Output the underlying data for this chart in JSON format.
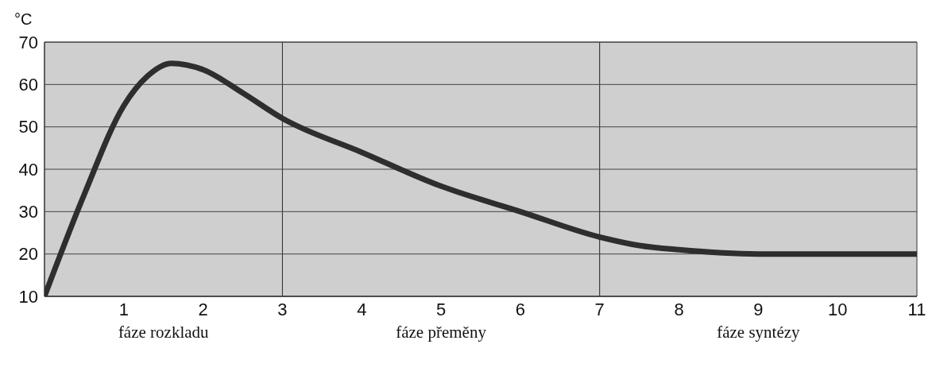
{
  "chart_data": {
    "type": "line",
    "ylabel": "°C",
    "x": [
      0,
      0.5,
      1,
      1.3,
      1.6,
      2,
      2.5,
      3,
      4,
      5,
      6,
      7,
      7.5,
      8,
      9,
      10,
      11
    ],
    "series": [
      {
        "color": "#2e2e2e",
        "values": [
          10,
          34,
          55,
          62,
          65,
          63.5,
          58,
          52,
          44,
          36,
          30,
          24,
          22,
          21,
          20,
          20,
          20
        ]
      }
    ],
    "xlim": [
      0,
      11
    ],
    "xticks": [
      1,
      2,
      3,
      4,
      5,
      6,
      7,
      8,
      9,
      10,
      11
    ],
    "ylim": [
      10,
      70
    ],
    "yticks": [
      10,
      20,
      30,
      40,
      50,
      60,
      70
    ],
    "grid": "y",
    "legend": false,
    "bands": [
      {
        "axis": "x",
        "from": 0,
        "to": 3,
        "label": "fáze rozkladu",
        "color": "#cfcfcf"
      },
      {
        "axis": "x",
        "from": 3,
        "to": 7,
        "label": "fáze přeměny",
        "color": "#cfcfcf"
      },
      {
        "axis": "x",
        "from": 7,
        "to": 11,
        "label": "fáze syntézy",
        "color": "#cfcfcf"
      }
    ]
  }
}
